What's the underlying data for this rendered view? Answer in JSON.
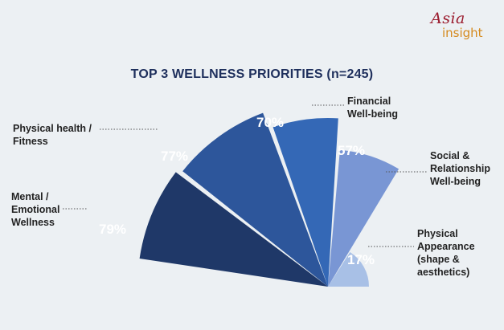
{
  "logo": {
    "line1": "Asia",
    "line2": "insight"
  },
  "chart_data": {
    "type": "pie",
    "title": "TOP 3 WELLNESS PRIORITIES (n=245)",
    "categories": [
      "Mental /\nEmotional\nWellness",
      "Physical health /\nFitness",
      "Financial\nWell-being",
      "Social &\nRelationship\nWell-being",
      "Physical\nAppearance\n(shape &\naesthetics)"
    ],
    "values": [
      79,
      77,
      70,
      57,
      17
    ],
    "value_labels": [
      "79%",
      "77%",
      "70%",
      "57%",
      "17%"
    ],
    "colors": [
      "#1f3868",
      "#2d569b",
      "#3468b6",
      "#7996d4",
      "#a8c0e6"
    ]
  }
}
